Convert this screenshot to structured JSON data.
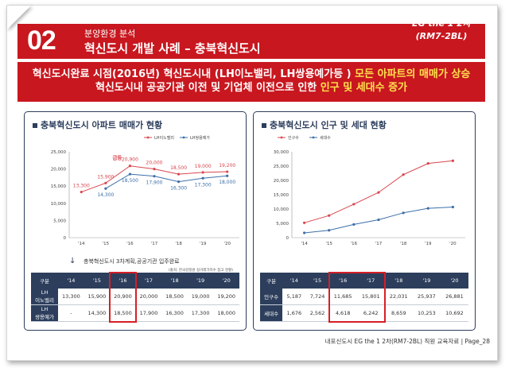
{
  "header": {
    "number": "02",
    "section": "분양환경 분석",
    "title": "혁신도시 개발 사례 – 충북혁신도시",
    "brand_line1": "EG the 1 2차",
    "brand_line2": "(RM7-2BL)"
  },
  "banner": {
    "line1_prefix": "혁신도시완료 시점(2016년)  혁신도시내 (LH이노밸리, LH쌍용예가등 ) ",
    "line1_highlight": "모든 아파트의 매매가 상승",
    "line2_prefix": "혁신도시내 공공기관 이전 및 기업체 이전으로 인한 ",
    "line2_highlight": "인구 및 세대수 증가"
  },
  "left_panel": {
    "title": "충북혁신도시 아파트 매매가 현황",
    "spike_label": "급등",
    "annotation": "충북혁신도시  3차계획,공공기관 입주완료",
    "source_note": "(출처: 한국감정원 실거래가지수 참고 현황)"
  },
  "right_panel": {
    "title": "충북혁신도시 인구 및 세대 현황"
  },
  "chart_data": [
    {
      "type": "line",
      "x": [
        "'14",
        "'15",
        "'16",
        "'17",
        "'18",
        "'19",
        "'20"
      ],
      "ylim": [
        0,
        25000
      ],
      "yticks": [
        "0",
        "5,000",
        "10,000",
        "15,000",
        "20,000",
        "25,000"
      ],
      "series": [
        {
          "name": "LH이노밸리",
          "color": "#d9464e",
          "values": [
            13300,
            15900,
            20900,
            20000,
            18500,
            19000,
            19200
          ],
          "labels": [
            "13,300",
            "15,900",
            "20,900",
            "20,000",
            "18,500",
            "19,000",
            "19,200"
          ]
        },
        {
          "name": "LH쌍용예가",
          "color": "#3d6fa8",
          "values": [
            null,
            14300,
            18500,
            17900,
            16300,
            17300,
            18000
          ],
          "labels": [
            "",
            "14,300",
            "18,500",
            "17,900",
            "16,300",
            "17,300",
            "18,000"
          ]
        }
      ]
    },
    {
      "type": "line",
      "x": [
        "'14",
        "'15",
        "'16",
        "'17",
        "'18",
        "'19",
        "'20"
      ],
      "ylim": [
        0,
        30000
      ],
      "yticks": [
        "0",
        "5,000",
        "10,000",
        "15,000",
        "20,000",
        "25,000",
        "30,000"
      ],
      "series": [
        {
          "name": "인구수",
          "color": "#d9464e",
          "values": [
            5187,
            7724,
            11685,
            15801,
            22031,
            25937,
            26881
          ]
        },
        {
          "name": "세대수",
          "color": "#3d6fa8",
          "values": [
            1676,
            2562,
            4618,
            6242,
            8659,
            10253,
            10692
          ]
        }
      ]
    }
  ],
  "left_table": {
    "header": [
      "구분",
      "'14",
      "'15",
      "'16",
      "'17",
      "'18",
      "'19",
      "'20"
    ],
    "rows": [
      {
        "label1": "LH",
        "label2": "이노밸리",
        "cells": [
          "13,300",
          "15,900",
          "20,900",
          "20,000",
          "18,500",
          "19,000",
          "19,200"
        ]
      },
      {
        "label1": "LH",
        "label2": "쌍용예가",
        "cells": [
          "-",
          "14,300",
          "18,500",
          "17,900",
          "16,300",
          "17,300",
          "18,000"
        ]
      }
    ]
  },
  "right_table": {
    "header": [
      "구분",
      "'14",
      "'15",
      "'16",
      "'17",
      "'18",
      "'19",
      "'20"
    ],
    "rows": [
      {
        "label": "인구수",
        "cells": [
          "5,187",
          "7,724",
          "11,685",
          "15,801",
          "22,031",
          "25,937",
          "26,881"
        ]
      },
      {
        "label": "세대수",
        "cells": [
          "1,676",
          "2,562",
          "4,618",
          "6,242",
          "8,659",
          "10,253",
          "10,692"
        ]
      }
    ]
  },
  "footer": {
    "text": "내포신도시 EG the 1 2차(RM7-2BL) 직원 교육자료 |  Page_28"
  }
}
